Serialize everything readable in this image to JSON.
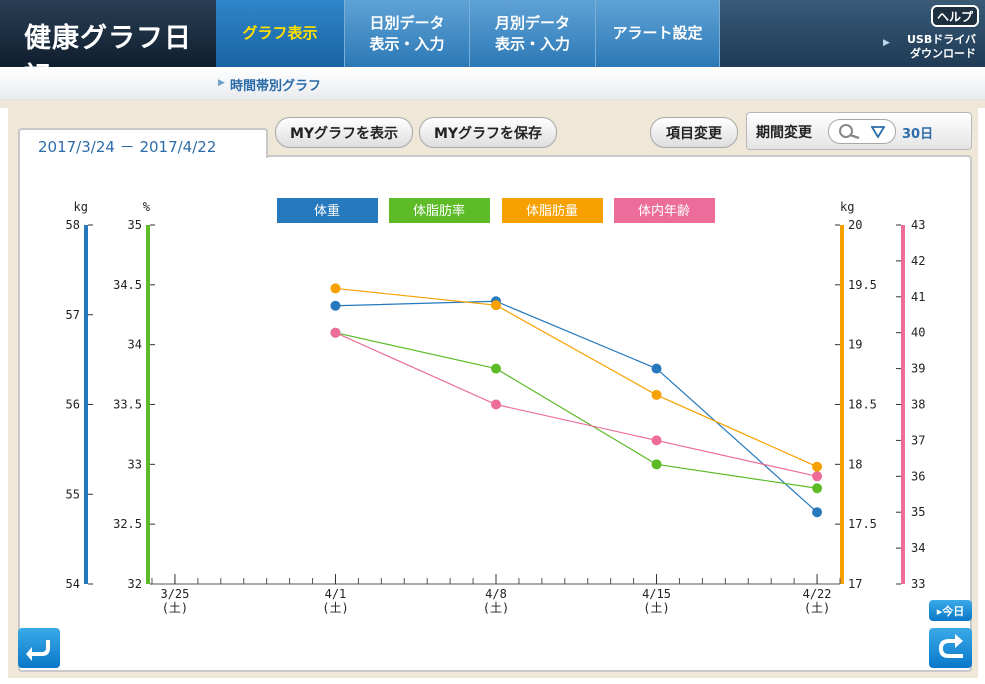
{
  "header": {
    "app_title": "健康グラフ日記",
    "tabs": [
      {
        "label": "グラフ表示"
      },
      {
        "label": "日別データ\n表示・入力"
      },
      {
        "label": "月別データ\n表示・入力"
      },
      {
        "label": "アラート設定"
      }
    ],
    "help_label": "ヘルプ",
    "usb_link_line1": "USBドライバ",
    "usb_link_line2": "ダウンロード"
  },
  "subheader": {
    "label": "時間帯別グラフ"
  },
  "toolbar": {
    "date_range": "2017/3/24 － 2017/4/22",
    "my_graph_show": "MYグラフを表示",
    "my_graph_save": "MYグラフを保存",
    "item_change": "項目変更",
    "period_change": "期間変更",
    "period_value": "30日",
    "today": "▸今日"
  },
  "icons": {
    "zoom": "magnifier-icon",
    "dropdown": "triangle-down-icon",
    "back": "return-left-icon",
    "forward": "return-right-icon"
  },
  "colors": {
    "weight": "#2679bd",
    "body_fat_rate": "#5dbb28",
    "body_fat_mass": "#f7a100",
    "body_age": "#ec6d9a"
  },
  "chart_data": {
    "type": "line",
    "legend_placement": "top-center",
    "grid": false,
    "categories_ticks": [
      {
        "date": "3/25",
        "day": "(土)"
      },
      {
        "date": "4/1",
        "day": "(土)"
      },
      {
        "date": "4/8",
        "day": "(土)"
      },
      {
        "date": "4/15",
        "day": "(土)"
      },
      {
        "date": "4/22",
        "day": "(土)"
      }
    ],
    "x_range": [
      "2017/3/24",
      "2017/4/22"
    ],
    "axes": {
      "weight": {
        "unit": "kg",
        "range": [
          54,
          58
        ],
        "ticks": [
          54,
          55,
          56,
          57,
          58
        ]
      },
      "body_fat_rate": {
        "unit": "%",
        "range": [
          32,
          35
        ],
        "ticks": [
          32,
          32.5,
          33,
          33.5,
          34,
          34.5,
          35
        ]
      },
      "body_fat_mass": {
        "unit": "kg",
        "range": [
          17,
          20
        ],
        "ticks": [
          17,
          17.5,
          18,
          18.5,
          19,
          19.5,
          20
        ]
      },
      "body_age": {
        "unit": "",
        "range": [
          33,
          43
        ],
        "ticks": [
          33,
          34,
          35,
          36,
          37,
          38,
          39,
          40,
          41,
          42,
          43
        ]
      }
    },
    "series": [
      {
        "name": "体重",
        "axis": "weight",
        "color": "#2679bd",
        "points": [
          {
            "x": "2017/4/1",
            "y": 57.1
          },
          {
            "x": "2017/4/8",
            "y": 57.15
          },
          {
            "x": "2017/4/15",
            "y": 56.4
          },
          {
            "x": "2017/4/22",
            "y": 54.8
          }
        ]
      },
      {
        "name": "体脂肪率",
        "axis": "body_fat_rate",
        "color": "#5dbb28",
        "points": [
          {
            "x": "2017/4/1",
            "y": 34.1
          },
          {
            "x": "2017/4/8",
            "y": 33.8
          },
          {
            "x": "2017/4/15",
            "y": 33.0
          },
          {
            "x": "2017/4/22",
            "y": 32.8
          }
        ]
      },
      {
        "name": "体脂肪量",
        "axis": "body_fat_mass",
        "color": "#f7a100",
        "points": [
          {
            "x": "2017/4/1",
            "y": 19.47
          },
          {
            "x": "2017/4/8",
            "y": 19.33
          },
          {
            "x": "2017/4/15",
            "y": 18.58
          },
          {
            "x": "2017/4/22",
            "y": 17.98
          }
        ]
      },
      {
        "name": "体内年齢",
        "axis": "body_age",
        "color": "#ec6d9a",
        "points": [
          {
            "x": "2017/4/1",
            "y": 40
          },
          {
            "x": "2017/4/8",
            "y": 38
          },
          {
            "x": "2017/4/15",
            "y": 37
          },
          {
            "x": "2017/4/22",
            "y": 36
          }
        ]
      }
    ]
  }
}
